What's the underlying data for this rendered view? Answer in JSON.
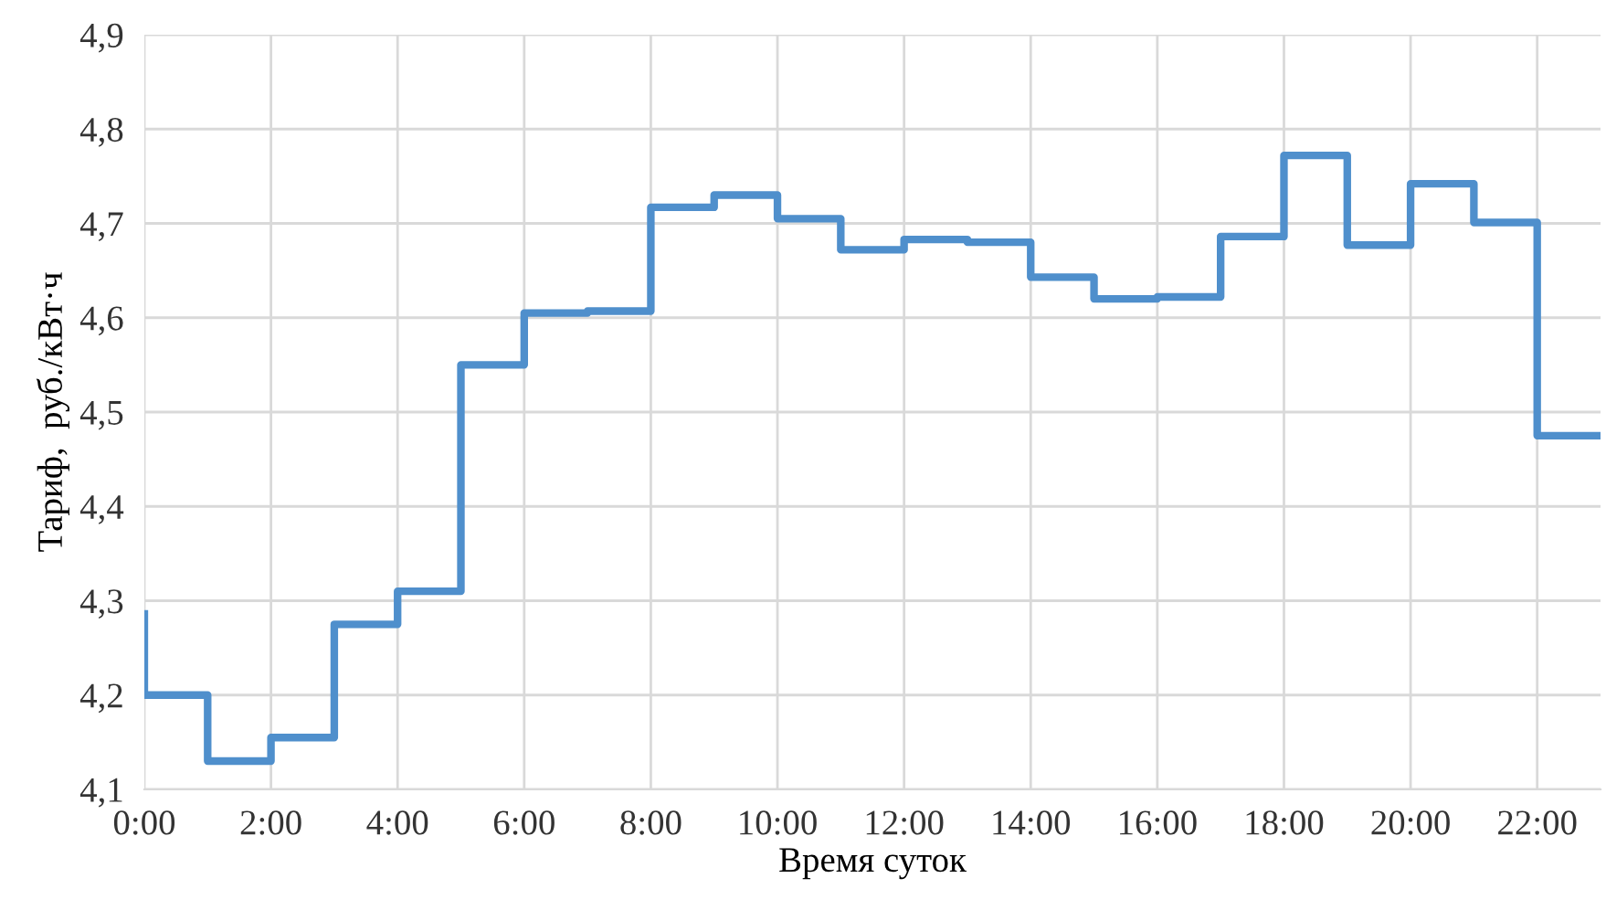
{
  "chart_data": {
    "type": "step",
    "xlabel": "Время суток",
    "ylabel": "Тариф,  руб./кВт·ч",
    "x": [
      0,
      1,
      2,
      3,
      4,
      5,
      6,
      7,
      8,
      9,
      10,
      11,
      12,
      13,
      14,
      15,
      16,
      17,
      18,
      19,
      20,
      21,
      22,
      23
    ],
    "series": [
      {
        "color": "#4f8fcc",
        "values": [
          4.29,
          4.2,
          4.13,
          4.155,
          4.275,
          4.31,
          4.55,
          4.605,
          4.607,
          4.717,
          4.73,
          4.705,
          4.672,
          4.683,
          4.68,
          4.643,
          4.62,
          4.622,
          4.686,
          4.772,
          4.677,
          4.742,
          4.701,
          4.475
        ]
      }
    ],
    "xlim": [
      0,
      23
    ],
    "xticks": [
      {
        "value": 0,
        "label": "0:00"
      },
      {
        "value": 2,
        "label": "2:00"
      },
      {
        "value": 4,
        "label": "4:00"
      },
      {
        "value": 6,
        "label": "6:00"
      },
      {
        "value": 8,
        "label": "8:00"
      },
      {
        "value": 10,
        "label": "10:00"
      },
      {
        "value": 12,
        "label": "12:00"
      },
      {
        "value": 14,
        "label": "14:00"
      },
      {
        "value": 16,
        "label": "16:00"
      },
      {
        "value": 18,
        "label": "18:00"
      },
      {
        "value": 20,
        "label": "20:00"
      },
      {
        "value": 22,
        "label": "22:00"
      }
    ],
    "ylim": [
      4.1,
      4.9
    ],
    "yticks": [
      {
        "value": 4.1,
        "label": "4,1"
      },
      {
        "value": 4.2,
        "label": "4,2"
      },
      {
        "value": 4.3,
        "label": "4,3"
      },
      {
        "value": 4.4,
        "label": "4,4"
      },
      {
        "value": 4.5,
        "label": "4,5"
      },
      {
        "value": 4.6,
        "label": "4,6"
      },
      {
        "value": 4.7,
        "label": "4,7"
      },
      {
        "value": 4.8,
        "label": "4,8"
      },
      {
        "value": 4.9,
        "label": "4,9"
      }
    ],
    "grid": true,
    "legend": false,
    "marker": "none",
    "line_style": "solid"
  }
}
